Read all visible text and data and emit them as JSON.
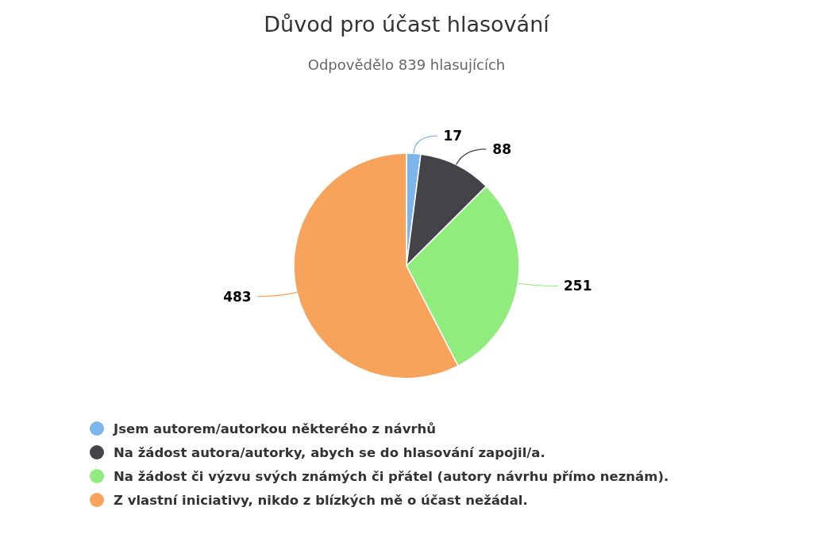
{
  "chart_data": {
    "type": "pie",
    "title": "Důvod pro účast hlasování",
    "subtitle": "Odpovědělo 839 hlasujících",
    "categories": [
      "Jsem autorem/autorkou některého z návrhů",
      "Na žádost autora/autorky, abych se do hlasování zapojil/a.",
      "Na žádost či výzvu svých známých či přátel (autory návrhu přímo neznám).",
      "Z vlastní iniciativy, nikdo z blízkých mě o účast nežádal."
    ],
    "values": [
      17,
      88,
      251,
      483
    ],
    "colors": [
      "#7cb5ec",
      "#434348",
      "#90ed7d",
      "#f7a35c"
    ],
    "data_labels": true,
    "legend": "bottom"
  }
}
